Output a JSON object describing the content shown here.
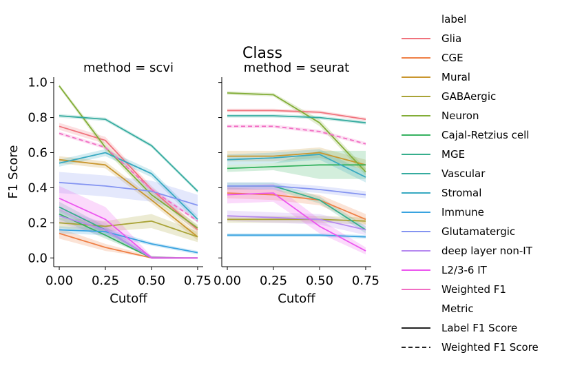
{
  "figure": {
    "suptitle": "Class"
  },
  "chart_data": [
    {
      "type": "line",
      "title": "method = scvi",
      "xlabel": "Cutoff",
      "ylabel": "F1 Score",
      "xlim": [
        -0.03,
        0.78
      ],
      "ylim": [
        -0.05,
        1.03
      ],
      "xticks": [
        "0.00",
        "0.25",
        "0.50",
        "0.75"
      ],
      "yticks": [
        "0.0",
        "0.2",
        "0.4",
        "0.6",
        "0.8",
        "1.0"
      ],
      "x": [
        0.0,
        0.25,
        0.5,
        0.75
      ],
      "series": [
        {
          "name": "Glia",
          "metric": "Label F1 Score",
          "values": [
            0.75,
            0.67,
            0.39,
            0.16
          ],
          "lower": [
            0.73,
            0.65,
            0.37,
            0.14
          ],
          "upper": [
            0.77,
            0.69,
            0.41,
            0.18
          ]
        },
        {
          "name": "CGE",
          "metric": "Label F1 Score",
          "values": [
            0.14,
            0.06,
            0.0,
            0.0
          ],
          "lower": [
            0.11,
            0.04,
            0.0,
            0.0
          ],
          "upper": [
            0.17,
            0.08,
            0.01,
            0.0
          ]
        },
        {
          "name": "Mural",
          "metric": "Label F1 Score",
          "values": [
            0.56,
            0.53,
            0.33,
            0.12
          ],
          "lower": [
            0.54,
            0.51,
            0.31,
            0.1
          ],
          "upper": [
            0.58,
            0.55,
            0.35,
            0.14
          ]
        },
        {
          "name": "GABAergic",
          "metric": "Label F1 Score",
          "values": [
            0.2,
            0.18,
            0.21,
            0.12
          ],
          "lower": [
            0.17,
            0.15,
            0.17,
            0.09
          ],
          "upper": [
            0.23,
            0.21,
            0.25,
            0.15
          ]
        },
        {
          "name": "Neuron",
          "metric": "Label F1 Score",
          "values": [
            0.98,
            0.63,
            0.36,
            0.17
          ],
          "lower": [
            0.97,
            0.61,
            0.34,
            0.15
          ],
          "upper": [
            0.99,
            0.65,
            0.38,
            0.19
          ]
        },
        {
          "name": "Cajal-Retzius cell",
          "metric": "Label F1 Score",
          "values": [
            0.25,
            0.13,
            0.0,
            0.0
          ],
          "lower": [
            0.22,
            0.11,
            0.0,
            0.0
          ],
          "upper": [
            0.28,
            0.15,
            0.01,
            0.0
          ]
        },
        {
          "name": "MGE",
          "metric": "Label F1 Score",
          "values": [
            0.29,
            0.16,
            0.0,
            0.0
          ],
          "lower": [
            0.26,
            0.14,
            0.0,
            0.0
          ],
          "upper": [
            0.32,
            0.18,
            0.01,
            0.0
          ]
        },
        {
          "name": "Vascular",
          "metric": "Label F1 Score",
          "values": [
            0.81,
            0.79,
            0.64,
            0.38
          ],
          "lower": [
            0.8,
            0.78,
            0.63,
            0.37
          ],
          "upper": [
            0.82,
            0.8,
            0.65,
            0.39
          ]
        },
        {
          "name": "Stromal",
          "metric": "Label F1 Score",
          "values": [
            0.54,
            0.6,
            0.48,
            0.22
          ],
          "lower": [
            0.52,
            0.58,
            0.46,
            0.2
          ],
          "upper": [
            0.56,
            0.62,
            0.5,
            0.24
          ]
        },
        {
          "name": "Immune",
          "metric": "Label F1 Score",
          "values": [
            0.16,
            0.15,
            0.08,
            0.03
          ],
          "lower": [
            0.14,
            0.13,
            0.07,
            0.02
          ],
          "upper": [
            0.18,
            0.17,
            0.09,
            0.04
          ]
        },
        {
          "name": "Glutamatergic",
          "metric": "Label F1 Score",
          "values": [
            0.43,
            0.41,
            0.38,
            0.3
          ],
          "lower": [
            0.37,
            0.35,
            0.32,
            0.24
          ],
          "upper": [
            0.49,
            0.47,
            0.44,
            0.36
          ]
        },
        {
          "name": "deep layer non-IT",
          "metric": "Label F1 Score",
          "values": [
            0.24,
            0.16,
            0.0,
            0.0
          ],
          "lower": [
            0.2,
            0.12,
            0.0,
            0.0
          ],
          "upper": [
            0.28,
            0.2,
            0.01,
            0.0
          ]
        },
        {
          "name": "L2/3-6 IT",
          "metric": "Label F1 Score",
          "values": [
            0.34,
            0.22,
            0.0,
            0.0
          ],
          "lower": [
            0.27,
            0.15,
            0.0,
            0.0
          ],
          "upper": [
            0.41,
            0.29,
            0.01,
            0.0
          ]
        },
        {
          "name": "Weighted F1",
          "metric": "Weighted F1 Score",
          "values": [
            0.71,
            0.63,
            0.39,
            0.21
          ],
          "lower": [
            0.7,
            0.62,
            0.38,
            0.2
          ],
          "upper": [
            0.72,
            0.64,
            0.4,
            0.22
          ]
        }
      ]
    },
    {
      "type": "line",
      "title": "method = seurat",
      "xlabel": "Cutoff",
      "ylabel": "",
      "xlim": [
        -0.03,
        0.78
      ],
      "ylim": [
        -0.05,
        1.03
      ],
      "xticks": [
        "0.00",
        "0.25",
        "0.50",
        "0.75"
      ],
      "yticks": [],
      "x": [
        0.0,
        0.25,
        0.5,
        0.75
      ],
      "series": [
        {
          "name": "Glia",
          "metric": "Label F1 Score",
          "values": [
            0.84,
            0.84,
            0.83,
            0.79
          ],
          "lower": [
            0.83,
            0.83,
            0.82,
            0.78
          ],
          "upper": [
            0.85,
            0.85,
            0.84,
            0.8
          ]
        },
        {
          "name": "CGE",
          "metric": "Label F1 Score",
          "values": [
            0.37,
            0.36,
            0.33,
            0.22
          ],
          "lower": [
            0.34,
            0.33,
            0.3,
            0.19
          ],
          "upper": [
            0.4,
            0.39,
            0.36,
            0.25
          ]
        },
        {
          "name": "Mural",
          "metric": "Label F1 Score",
          "values": [
            0.58,
            0.58,
            0.6,
            0.53
          ],
          "lower": [
            0.55,
            0.55,
            0.57,
            0.5
          ],
          "upper": [
            0.61,
            0.61,
            0.63,
            0.56
          ]
        },
        {
          "name": "GABAergic",
          "metric": "Label F1 Score",
          "values": [
            0.22,
            0.22,
            0.22,
            0.21
          ],
          "lower": [
            0.2,
            0.2,
            0.2,
            0.19
          ],
          "upper": [
            0.24,
            0.24,
            0.24,
            0.23
          ]
        },
        {
          "name": "Neuron",
          "metric": "Label F1 Score",
          "values": [
            0.94,
            0.93,
            0.77,
            0.49
          ],
          "lower": [
            0.93,
            0.92,
            0.75,
            0.47
          ],
          "upper": [
            0.95,
            0.94,
            0.79,
            0.51
          ]
        },
        {
          "name": "Cajal-Retzius cell",
          "metric": "Label F1 Score",
          "values": [
            0.51,
            0.52,
            0.53,
            0.53
          ],
          "lower": [
            0.49,
            0.5,
            0.45,
            0.45
          ],
          "upper": [
            0.53,
            0.54,
            0.61,
            0.61
          ]
        },
        {
          "name": "MGE",
          "metric": "Label F1 Score",
          "values": [
            0.41,
            0.41,
            0.33,
            0.16
          ],
          "lower": [
            0.39,
            0.39,
            0.31,
            0.14
          ],
          "upper": [
            0.43,
            0.43,
            0.35,
            0.18
          ]
        },
        {
          "name": "Vascular",
          "metric": "Label F1 Score",
          "values": [
            0.81,
            0.81,
            0.8,
            0.77
          ],
          "lower": [
            0.8,
            0.8,
            0.79,
            0.76
          ],
          "upper": [
            0.82,
            0.82,
            0.81,
            0.78
          ]
        },
        {
          "name": "Stromal",
          "metric": "Label F1 Score",
          "values": [
            0.56,
            0.57,
            0.59,
            0.46
          ],
          "lower": [
            0.53,
            0.54,
            0.56,
            0.43
          ],
          "upper": [
            0.59,
            0.6,
            0.62,
            0.49
          ]
        },
        {
          "name": "Immune",
          "metric": "Label F1 Score",
          "values": [
            0.13,
            0.13,
            0.13,
            0.12
          ],
          "lower": [
            0.12,
            0.12,
            0.12,
            0.11
          ],
          "upper": [
            0.14,
            0.14,
            0.14,
            0.13
          ]
        },
        {
          "name": "Glutamatergic",
          "metric": "Label F1 Score",
          "values": [
            0.41,
            0.41,
            0.39,
            0.36
          ],
          "lower": [
            0.39,
            0.39,
            0.37,
            0.34
          ],
          "upper": [
            0.43,
            0.43,
            0.41,
            0.38
          ]
        },
        {
          "name": "deep layer non-IT",
          "metric": "Label F1 Score",
          "values": [
            0.24,
            0.23,
            0.22,
            0.16
          ],
          "lower": [
            0.21,
            0.2,
            0.19,
            0.13
          ],
          "upper": [
            0.27,
            0.26,
            0.25,
            0.19
          ]
        },
        {
          "name": "L2/3-6 IT",
          "metric": "Label F1 Score",
          "values": [
            0.36,
            0.37,
            0.18,
            0.04
          ],
          "lower": [
            0.31,
            0.32,
            0.14,
            0.02
          ],
          "upper": [
            0.41,
            0.42,
            0.22,
            0.06
          ]
        },
        {
          "name": "Weighted F1",
          "metric": "Weighted F1 Score",
          "values": [
            0.75,
            0.75,
            0.72,
            0.65
          ],
          "lower": [
            0.74,
            0.74,
            0.71,
            0.64
          ],
          "upper": [
            0.76,
            0.76,
            0.73,
            0.66
          ]
        }
      ]
    }
  ],
  "legend": {
    "placement": "right",
    "label_title": "label",
    "labels": [
      {
        "name": "Glia",
        "color": "#f0727c"
      },
      {
        "name": "CGE",
        "color": "#ef7f45"
      },
      {
        "name": "Mural",
        "color": "#c9962e"
      },
      {
        "name": "GABAergic",
        "color": "#a9a336"
      },
      {
        "name": "Neuron",
        "color": "#82ad37"
      },
      {
        "name": "Cajal-Retzius cell",
        "color": "#35b25f"
      },
      {
        "name": "MGE",
        "color": "#36ae8c"
      },
      {
        "name": "Vascular",
        "color": "#35ab9f"
      },
      {
        "name": "Stromal",
        "color": "#37a9c1"
      },
      {
        "name": "Immune",
        "color": "#39a3e0"
      },
      {
        "name": "Glutamatergic",
        "color": "#8494f1"
      },
      {
        "name": "deep layer non-IT",
        "color": "#b68af0"
      },
      {
        "name": "L2/3-6 IT",
        "color": "#ec56ef"
      },
      {
        "name": "Weighted F1",
        "color": "#f16dc3"
      }
    ],
    "metric_title": "Metric",
    "metrics": [
      {
        "name": "Label F1 Score",
        "dash": "solid"
      },
      {
        "name": "Weighted F1 Score",
        "dash": "dashed"
      }
    ]
  }
}
